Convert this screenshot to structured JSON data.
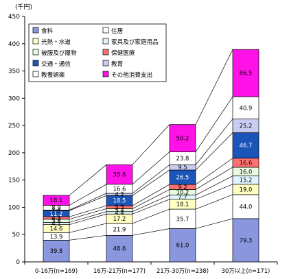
{
  "chart_data": {
    "type": "bar",
    "stacked": true,
    "unit_label": "(千円)",
    "title": "",
    "xlabel": "",
    "ylabel": "",
    "ylim": [
      0,
      450
    ],
    "yticks": [
      0,
      50,
      100,
      150,
      200,
      250,
      300,
      350,
      400,
      450
    ],
    "categories": [
      "0-16万(n=169)",
      "16万-21万(n=177)",
      "21万-30万(n=238)",
      "30万以上(n=171)"
    ],
    "legend_position": "top-left",
    "grid": false,
    "connector_lines": true,
    "series": [
      {
        "name": "食料",
        "color": "#8a96de",
        "values": [
          39.8,
          48.6,
          61.0,
          79.3
        ]
      },
      {
        "name": "住居",
        "color": "#ffffff",
        "values": [
          13.9,
          21.9,
          35.7,
          44.0
        ]
      },
      {
        "name": "光熱・水道",
        "color": "#ffffc4",
        "values": [
          14.6,
          17.2,
          18.1,
          19.0
        ]
      },
      {
        "name": "家具及び家庭用品",
        "color": "#dff6ff",
        "values": [
          4.1,
          4.4,
          7.7,
          15.2
        ]
      },
      {
        "name": "被服及び履物",
        "color": "#e8fbe0",
        "values": [
          5.8,
          5.4,
          10.2,
          16.0
        ]
      },
      {
        "name": "保健医療",
        "color": "#ff7171",
        "values": [
          4.5,
          5.5,
          9.2,
          16.6
        ]
      },
      {
        "name": "交通・通信",
        "color": "#1b55b8",
        "values": [
          11.2,
          18.5,
          26.5,
          46.7
        ]
      },
      {
        "name": "教育",
        "color": "#c8ccf2",
        "values": [
          1.0,
          4.2,
          9.5,
          25.2
        ]
      },
      {
        "name": "教養娯楽",
        "color": "#ffffff",
        "values": [
          8.9,
          16.6,
          23.8,
          40.9
        ]
      },
      {
        "name": "その他消費支出",
        "color": "#ff12e8",
        "values": [
          18.1,
          35.8,
          50.2,
          86.5
        ]
      }
    ],
    "data_labels": [
      [
        "39.8",
        "13.9",
        "14.6",
        "4.1",
        "5.8",
        "4.5",
        "11.2",
        "1.0",
        "8.9",
        "18.1"
      ],
      [
        "48.6",
        "21.9",
        "17.2",
        "4.4",
        "5.4",
        "5.5",
        "18.5",
        "4.2",
        "16.6",
        "35.8"
      ],
      [
        "61.0",
        "35.7",
        "18.1",
        "7.7",
        "10.2",
        "9.2",
        "26.5",
        "9.5",
        "23.8",
        "50.2"
      ],
      [
        "79.3",
        "44.0",
        "19.0",
        "15.2",
        "16.0",
        "16.6",
        "46.7",
        "25.2",
        "40.9",
        "86.5"
      ]
    ],
    "legend_order": [
      [
        "食料",
        "住居"
      ],
      [
        "光熱・水道",
        "家具及び家庭用品"
      ],
      [
        "被服及び履物",
        "保健医療"
      ],
      [
        "交通・通信",
        "教育"
      ],
      [
        "教養娯楽",
        "その他消費支出"
      ]
    ]
  }
}
